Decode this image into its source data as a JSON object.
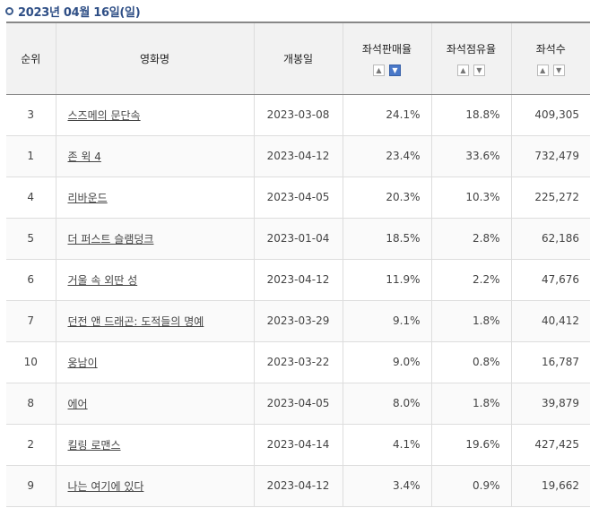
{
  "header": {
    "date": "2023년 04월 16일(일)"
  },
  "table": {
    "columns": {
      "rank": "순위",
      "title": "영화명",
      "release": "개봉일",
      "seat_sales": "좌석판매율",
      "seat_share": "좌석점유율",
      "seats": "좌석수"
    },
    "sort_icons": {
      "up": "▲",
      "down": "▼"
    },
    "rows": [
      {
        "rank": "3",
        "title": "스즈메의 문단속",
        "release": "2023-03-08",
        "seat_sales": "24.1%",
        "seat_share": "18.8%",
        "seats": "409,305"
      },
      {
        "rank": "1",
        "title": "존 윅 4",
        "release": "2023-04-12",
        "seat_sales": "23.4%",
        "seat_share": "33.6%",
        "seats": "732,479"
      },
      {
        "rank": "4",
        "title": "리바운드",
        "release": "2023-04-05",
        "seat_sales": "20.3%",
        "seat_share": "10.3%",
        "seats": "225,272"
      },
      {
        "rank": "5",
        "title": "더 퍼스트 슬램덩크",
        "release": "2023-01-04",
        "seat_sales": "18.5%",
        "seat_share": "2.8%",
        "seats": "62,186"
      },
      {
        "rank": "6",
        "title": "거울 속 외딴 성",
        "release": "2023-04-12",
        "seat_sales": "11.9%",
        "seat_share": "2.2%",
        "seats": "47,676"
      },
      {
        "rank": "7",
        "title": "던전 앤 드래곤: 도적들의 명예",
        "release": "2023-03-29",
        "seat_sales": "9.1%",
        "seat_share": "1.8%",
        "seats": "40,412"
      },
      {
        "rank": "10",
        "title": "웅남이",
        "release": "2023-03-22",
        "seat_sales": "9.0%",
        "seat_share": "0.8%",
        "seats": "16,787"
      },
      {
        "rank": "8",
        "title": "에어",
        "release": "2023-04-05",
        "seat_sales": "8.0%",
        "seat_share": "1.8%",
        "seats": "39,879"
      },
      {
        "rank": "2",
        "title": "킬링 로맨스",
        "release": "2023-04-14",
        "seat_sales": "4.1%",
        "seat_share": "19.6%",
        "seats": "427,425"
      },
      {
        "rank": "9",
        "title": "나는 여기에 있다",
        "release": "2023-04-12",
        "seat_sales": "3.4%",
        "seat_share": "0.9%",
        "seats": "19,662"
      }
    ]
  }
}
